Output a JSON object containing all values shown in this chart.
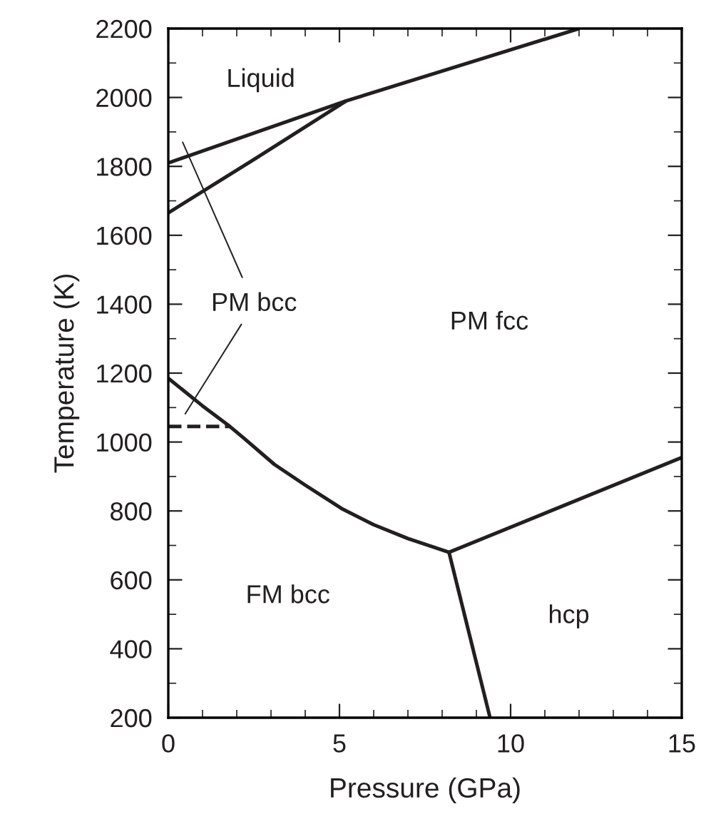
{
  "chart_data": {
    "type": "line",
    "xlabel": "Pressure (GPa)",
    "ylabel": "Temperature (K)",
    "series": [
      {
        "x": [
          0,
          5.2,
          12
        ],
        "values": [
          1810,
          1990,
          2200
        ],
        "color": "#231f20"
      },
      {
        "x": [
          0,
          2.5,
          5.2
        ],
        "values": [
          1665,
          1820,
          1990
        ],
        "color": "#231f20"
      },
      {
        "x": [
          0,
          1,
          1.8,
          2.2,
          3.1,
          4,
          5.1,
          6,
          7,
          8.2
        ],
        "values": [
          1185,
          1105,
          1045,
          1012,
          935,
          875,
          805,
          760,
          720,
          680
        ],
        "color": "#231f20"
      },
      {
        "x": [
          8.2,
          15
        ],
        "values": [
          680,
          955
        ],
        "color": "#231f20"
      },
      {
        "x": [
          8.2,
          9.4
        ],
        "values": [
          680,
          200
        ],
        "color": "#231f20"
      },
      {
        "x": [
          0,
          1.8
        ],
        "values": [
          1045,
          1045
        ],
        "color": "#231f20",
        "line_style": "dashed"
      }
    ],
    "xlim": [
      0,
      15
    ],
    "ylim": [
      200,
      2200
    ],
    "xticks": [
      0,
      5,
      10,
      15
    ],
    "yticks": [
      200,
      400,
      600,
      800,
      1000,
      1200,
      1400,
      1600,
      1800,
      2000,
      2200
    ],
    "grid": false,
    "legend": false,
    "marker": "none",
    "line_style": "solid",
    "annotations": [
      "Liquid",
      "PM bcc",
      "PM fcc",
      "FM bcc",
      "hcp"
    ]
  }
}
